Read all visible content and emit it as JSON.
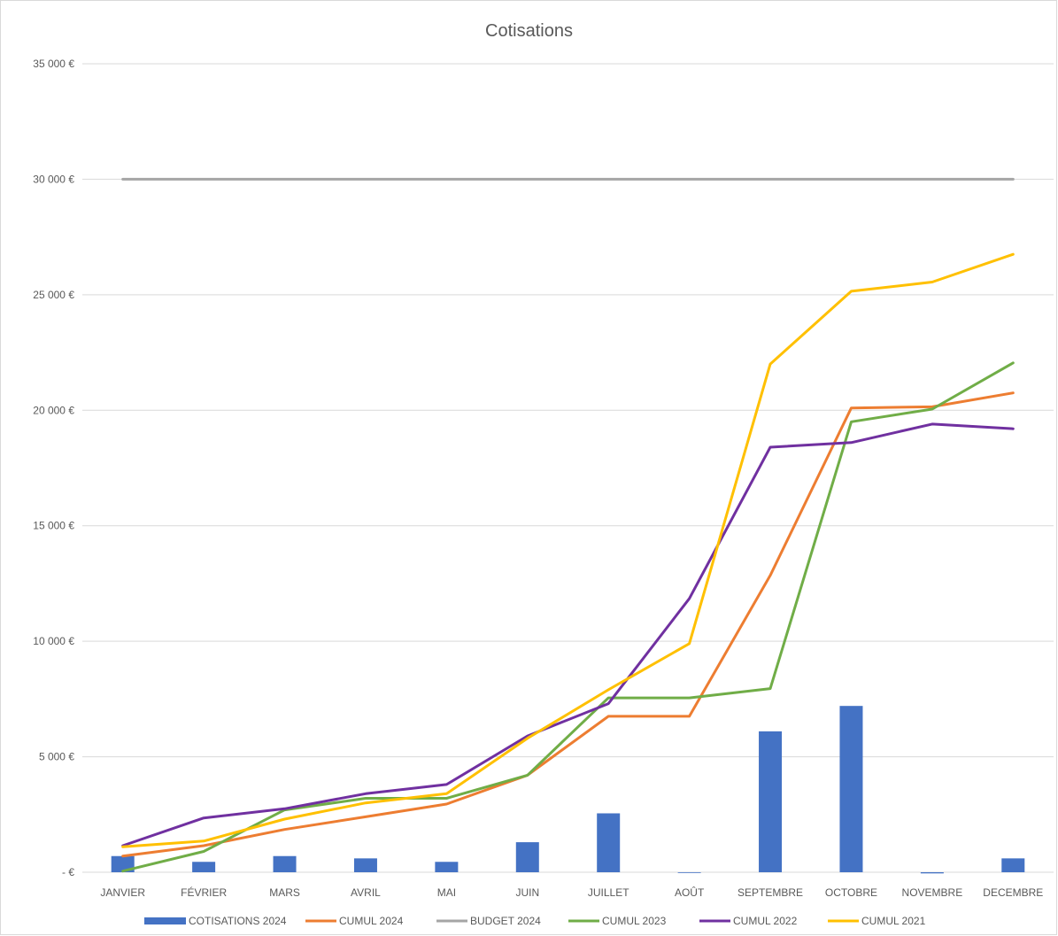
{
  "chart_data": {
    "type": "bar",
    "title": "Cotisations",
    "categories": [
      "JANVIER",
      "FÉVRIER",
      "MARS",
      "AVRIL",
      "MAI",
      "JUIN",
      "JUILLET",
      "AOÛT",
      "SEPTEMBRE",
      "OCTOBRE",
      "NOVEMBRE",
      "DECEMBRE"
    ],
    "y_ticks": [
      {
        "value": 0,
        "label": "-   €"
      },
      {
        "value": 5000,
        "label": "5 000 €"
      },
      {
        "value": 10000,
        "label": "10 000 €"
      },
      {
        "value": 15000,
        "label": "15 000 €"
      },
      {
        "value": 20000,
        "label": "20 000 €"
      },
      {
        "value": 25000,
        "label": "25 000 €"
      },
      {
        "value": 30000,
        "label": "30 000 €"
      },
      {
        "value": 35000,
        "label": "35 000 €"
      }
    ],
    "ylim": [
      0,
      35000
    ],
    "grid": true,
    "legend_position": "bottom",
    "series": [
      {
        "name": "COTISATIONS 2024",
        "kind": "bar",
        "color": "#4472c4",
        "values": [
          700,
          450,
          700,
          600,
          450,
          1300,
          2550,
          0,
          6100,
          7200,
          -50,
          600
        ]
      },
      {
        "name": "CUMUL 2024",
        "kind": "line",
        "color": "#ed7d31",
        "values": [
          700,
          1150,
          1850,
          2400,
          2950,
          4200,
          6750,
          6750,
          12850,
          20100,
          20150,
          20750
        ]
      },
      {
        "name": "BUDGET 2024",
        "kind": "line",
        "color": "#a5a5a5",
        "values": [
          30000,
          30000,
          30000,
          30000,
          30000,
          30000,
          30000,
          30000,
          30000,
          30000,
          30000,
          30000
        ]
      },
      {
        "name": "CUMUL 2023",
        "kind": "line",
        "color": "#70ad47",
        "values": [
          50,
          900,
          2700,
          3200,
          3200,
          4200,
          7550,
          7550,
          7950,
          19500,
          20050,
          22050
        ]
      },
      {
        "name": "CUMUL 2022",
        "kind": "line",
        "color": "#7030a0",
        "values": [
          1150,
          2350,
          2750,
          3400,
          3800,
          5900,
          7300,
          11850,
          18400,
          18600,
          19400,
          19200
        ]
      },
      {
        "name": "CUMUL 2021",
        "kind": "line",
        "color": "#ffc000",
        "values": [
          1100,
          1350,
          2300,
          3000,
          3400,
          5800,
          7900,
          9900,
          22000,
          25150,
          25550,
          26750
        ]
      }
    ]
  }
}
